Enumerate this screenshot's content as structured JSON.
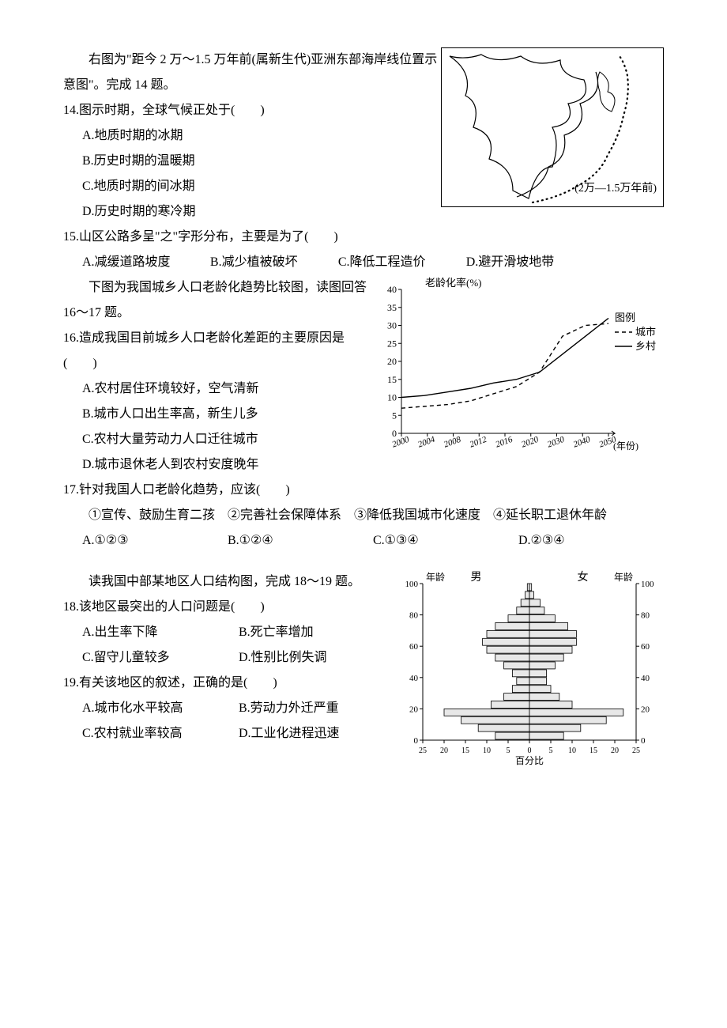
{
  "intro14": "右图为\"距今 2 万～1.5 万年前(属新生代)亚洲东部海岸线位置示意图\"。完成 14 题。",
  "q14": {
    "stem": "14.图示时期，全球气候正处于(　　)",
    "a": "A.地质时期的冰期",
    "b": "B.历史时期的温暖期",
    "c": "C.地质时期的间冰期",
    "d": "D.历史时期的寒冷期"
  },
  "map_label": "(2万—1.5万年前)",
  "q15": {
    "stem": "15.山区公路多呈\"之\"字形分布，主要是为了(　　)",
    "a": "A.减缓道路坡度",
    "b": "B.减少植被破坏",
    "c": "C.降低工程造价",
    "d": "D.避开滑坡地带"
  },
  "intro16": "下图为我国城乡人口老龄化趋势比较图，读图回答 16～17 题。",
  "q16": {
    "stem": "16.造成我国目前城乡人口老龄化差距的主要原因是(　　)",
    "a": "A.农村居住环境较好，空气清新",
    "b": "B.城市人口出生率高，新生儿多",
    "c": "C.农村大量劳动力人口迁往城市",
    "d": "D.城市退休老人到农村安度晚年"
  },
  "q17": {
    "stem": "17.针对我国人口老龄化趋势，应该(　　)",
    "items": "①宣传、鼓励生育二孩　②完善社会保障体系　③降低我国城市化速度　④延长职工退休年龄",
    "a": "A.①②③",
    "b": "B.①②④",
    "c": "C.①③④",
    "d": "D.②③④"
  },
  "aging_chart": {
    "title": "老龄化率(%)",
    "ylim": [
      0,
      40
    ],
    "ytick_step": 5,
    "yticks": [
      "0",
      "5",
      "10",
      "15",
      "20",
      "25",
      "30",
      "35",
      "40"
    ],
    "xticks": [
      "2000",
      "2004",
      "2008",
      "2012",
      "2016",
      "2020",
      "2030",
      "2040",
      "2050"
    ],
    "xlabel": "(年份)",
    "legend_title": "图例",
    "legend": [
      {
        "label": "城市",
        "dash": true
      },
      {
        "label": "乡村",
        "dash": false
      }
    ],
    "series": {
      "rural": [
        10,
        10.5,
        11.5,
        12.5,
        14,
        15,
        17,
        22,
        27,
        32
      ],
      "urban": [
        7,
        7.5,
        8,
        9,
        11,
        13,
        17,
        27,
        30,
        30.5
      ]
    },
    "colors": {
      "line": "#000",
      "grid": "#000",
      "bg": "#fff"
    }
  },
  "intro18": "读我国中部某地区人口结构图，完成 18～19 题。",
  "q18": {
    "stem": "18.该地区最突出的人口问题是(　　)",
    "a": "A.出生率下降",
    "b": "B.死亡率增加",
    "c": "C.留守儿童较多",
    "d": "D.性别比例失调"
  },
  "q19": {
    "stem": "19.有关该地区的叙述，正确的是(　　)",
    "a": "A.城市化水平较高",
    "b": "B.劳动力外迁严重",
    "c": "C.农村就业率较高",
    "d": "D.工业化进程迅速"
  },
  "pyramid": {
    "left_title": "男",
    "right_title": "女",
    "yaxis_label": "年龄",
    "yticks": [
      "0",
      "20",
      "40",
      "60",
      "80",
      "100"
    ],
    "xaxis_label": "百分比",
    "xticks": [
      "25",
      "20",
      "15",
      "10",
      "5",
      "0",
      "5",
      "10",
      "15",
      "20",
      "25"
    ],
    "bars": [
      {
        "age": 95,
        "m": 0.5,
        "f": 0.5
      },
      {
        "age": 90,
        "m": 1,
        "f": 1
      },
      {
        "age": 85,
        "m": 2,
        "f": 2.5
      },
      {
        "age": 80,
        "m": 3,
        "f": 3.5
      },
      {
        "age": 75,
        "m": 5,
        "f": 6
      },
      {
        "age": 70,
        "m": 8,
        "f": 9
      },
      {
        "age": 65,
        "m": 10,
        "f": 11
      },
      {
        "age": 60,
        "m": 11,
        "f": 11
      },
      {
        "age": 55,
        "m": 10,
        "f": 10
      },
      {
        "age": 50,
        "m": 8,
        "f": 8
      },
      {
        "age": 45,
        "m": 6,
        "f": 6
      },
      {
        "age": 40,
        "m": 4,
        "f": 4
      },
      {
        "age": 35,
        "m": 3,
        "f": 4
      },
      {
        "age": 30,
        "m": 4,
        "f": 5
      },
      {
        "age": 25,
        "m": 6,
        "f": 7
      },
      {
        "age": 20,
        "m": 9,
        "f": 10
      },
      {
        "age": 15,
        "m": 20,
        "f": 22
      },
      {
        "age": 10,
        "m": 16,
        "f": 18
      },
      {
        "age": 5,
        "m": 12,
        "f": 12
      },
      {
        "age": 0,
        "m": 8,
        "f": 8
      }
    ],
    "colors": {
      "fill": "#e8e8e8",
      "stroke": "#000"
    }
  }
}
